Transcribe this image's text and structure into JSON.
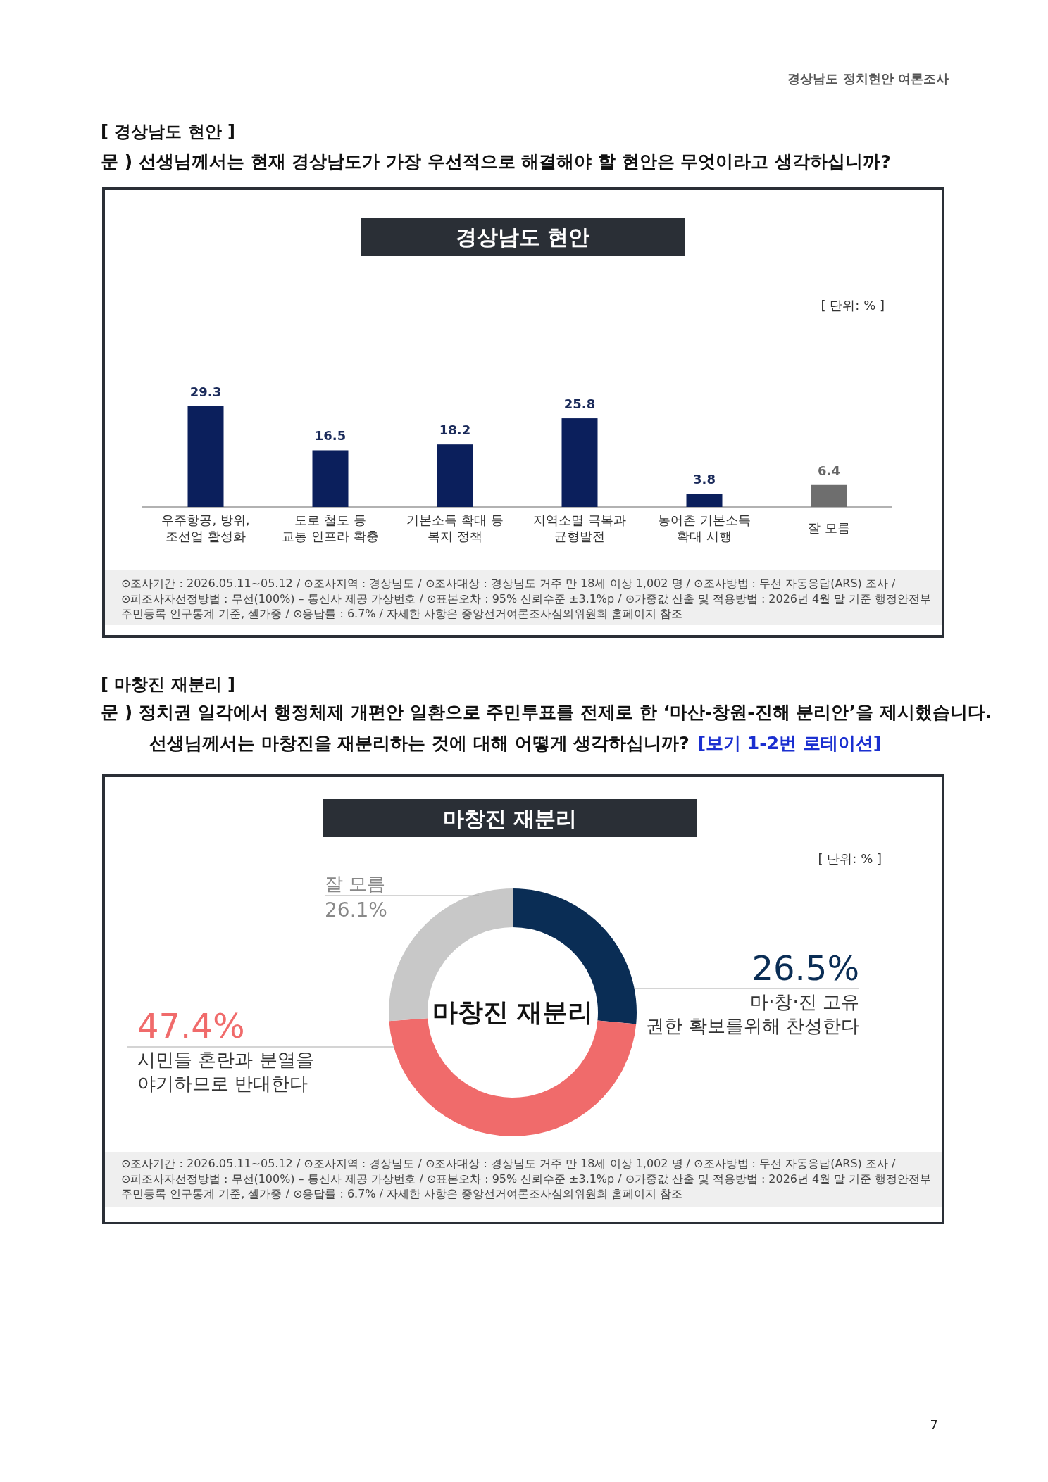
{
  "chart_data": [
    {
      "type": "bar",
      "title": "경상남도 현안",
      "categories": [
        "우주항공, 방위,\n조선업 활성화",
        "도로 철도 등\n교통 인프라 확충",
        "기본소득 확대 등\n복지 정책",
        "지역소멸 극복과\n균형발전",
        "농어촌 기본소득\n확대 시행",
        "잘 모름"
      ],
      "values": [
        29.3,
        16.5,
        18.2,
        25.8,
        3.8,
        6.4
      ],
      "colors": [
        "#0b1f5c",
        "#0b1f5c",
        "#0b1f5c",
        "#0b1f5c",
        "#0b1f5c",
        "#6e6e6e"
      ],
      "data_labels": true,
      "annotations": [
        "경상남도 정치현안 여론조사",
        "[ 경상남도 현안 ]",
        "문 )  선생님께서는 현재 경상남도가 가장 우선적으로 해결해야 할 현안은 무엇이라고 생각하십니까?",
        "[ 단위: % ]",
        "⊙조사기간 : 2026.05.11~05.12 / ⊙조사지역 : 경상남도 / ⊙조사대상 : 경상남도 거주 만 18세 이상 1,002 명 / ⊙조사방법 : 무선 자동응답(ARS) 조사 /\n⊙피조사자선정방법 : 무선(100%) – 통신사 제공 가상번호 / ⊙표본오차 : 95% 신뢰수준 ±3.1%p / ⊙가중값 산출 및 적용방법 : 2026년 4월 말 기준 행정안전부\n주민등록 인구통계 기준, 셀가중 / ⊙응답률 : 6.7% / 자세한 사항은 중앙선거여론조사심의위원회 홈페이지 참조",
        "7"
      ]
    },
    {
      "type": "donut",
      "title": "마창진 재분리",
      "categories": [
        "마·창·진 고유\n권한 확보를위해 찬성한다",
        "시민들 혼란과 분열을\n야기하므로 반대한다",
        "잘 모름"
      ],
      "values": [
        26.5,
        47.4,
        26.1
      ],
      "colors": [
        "#0a2d55",
        "#f06b6b",
        "#c8c8c8"
      ],
      "value_labels": [
        "26.5%",
        "47.4%",
        "26.1%"
      ],
      "annotations": [
        "[ 마창진 재분리 ]",
        "문 )  정치권 일각에서 행정체제 개편안 일환으로 주민투표를 전제로 한 ‘마산-창원-진해 분리안’을 제시했습니다.\n선생님께서는 마창진을 재분리하는 것에 대해 어떻게 생각하십니까?",
        "[보기 1-2번 로테이션]",
        "[ 단위: % ]",
        "마창진 재분리",
        "⊙조사기간 : 2026.05.11~05.12 / ⊙조사지역 : 경상남도 / ⊙조사대상 : 경상남도 거주 만 18세 이상 1,002 명 / ⊙조사방법 : 무선 자동응답(ARS) 조사 /\n⊙피조사자선정방법 : 무선(100%) – 통신사 제공 가상번호 / ⊙표본오차 : 95% 신뢰수준 ±3.1%p / ⊙가중값 산출 및 적용방법 : 2026년 4월 말 기준 행정안전부\n주민등록 인구통계 기준, 셀가중 / ⊙응답률 : 6.7% / 자세한 사항은 중앙선거여론조사심의위원회 홈페이지 참조"
      ]
    }
  ]
}
